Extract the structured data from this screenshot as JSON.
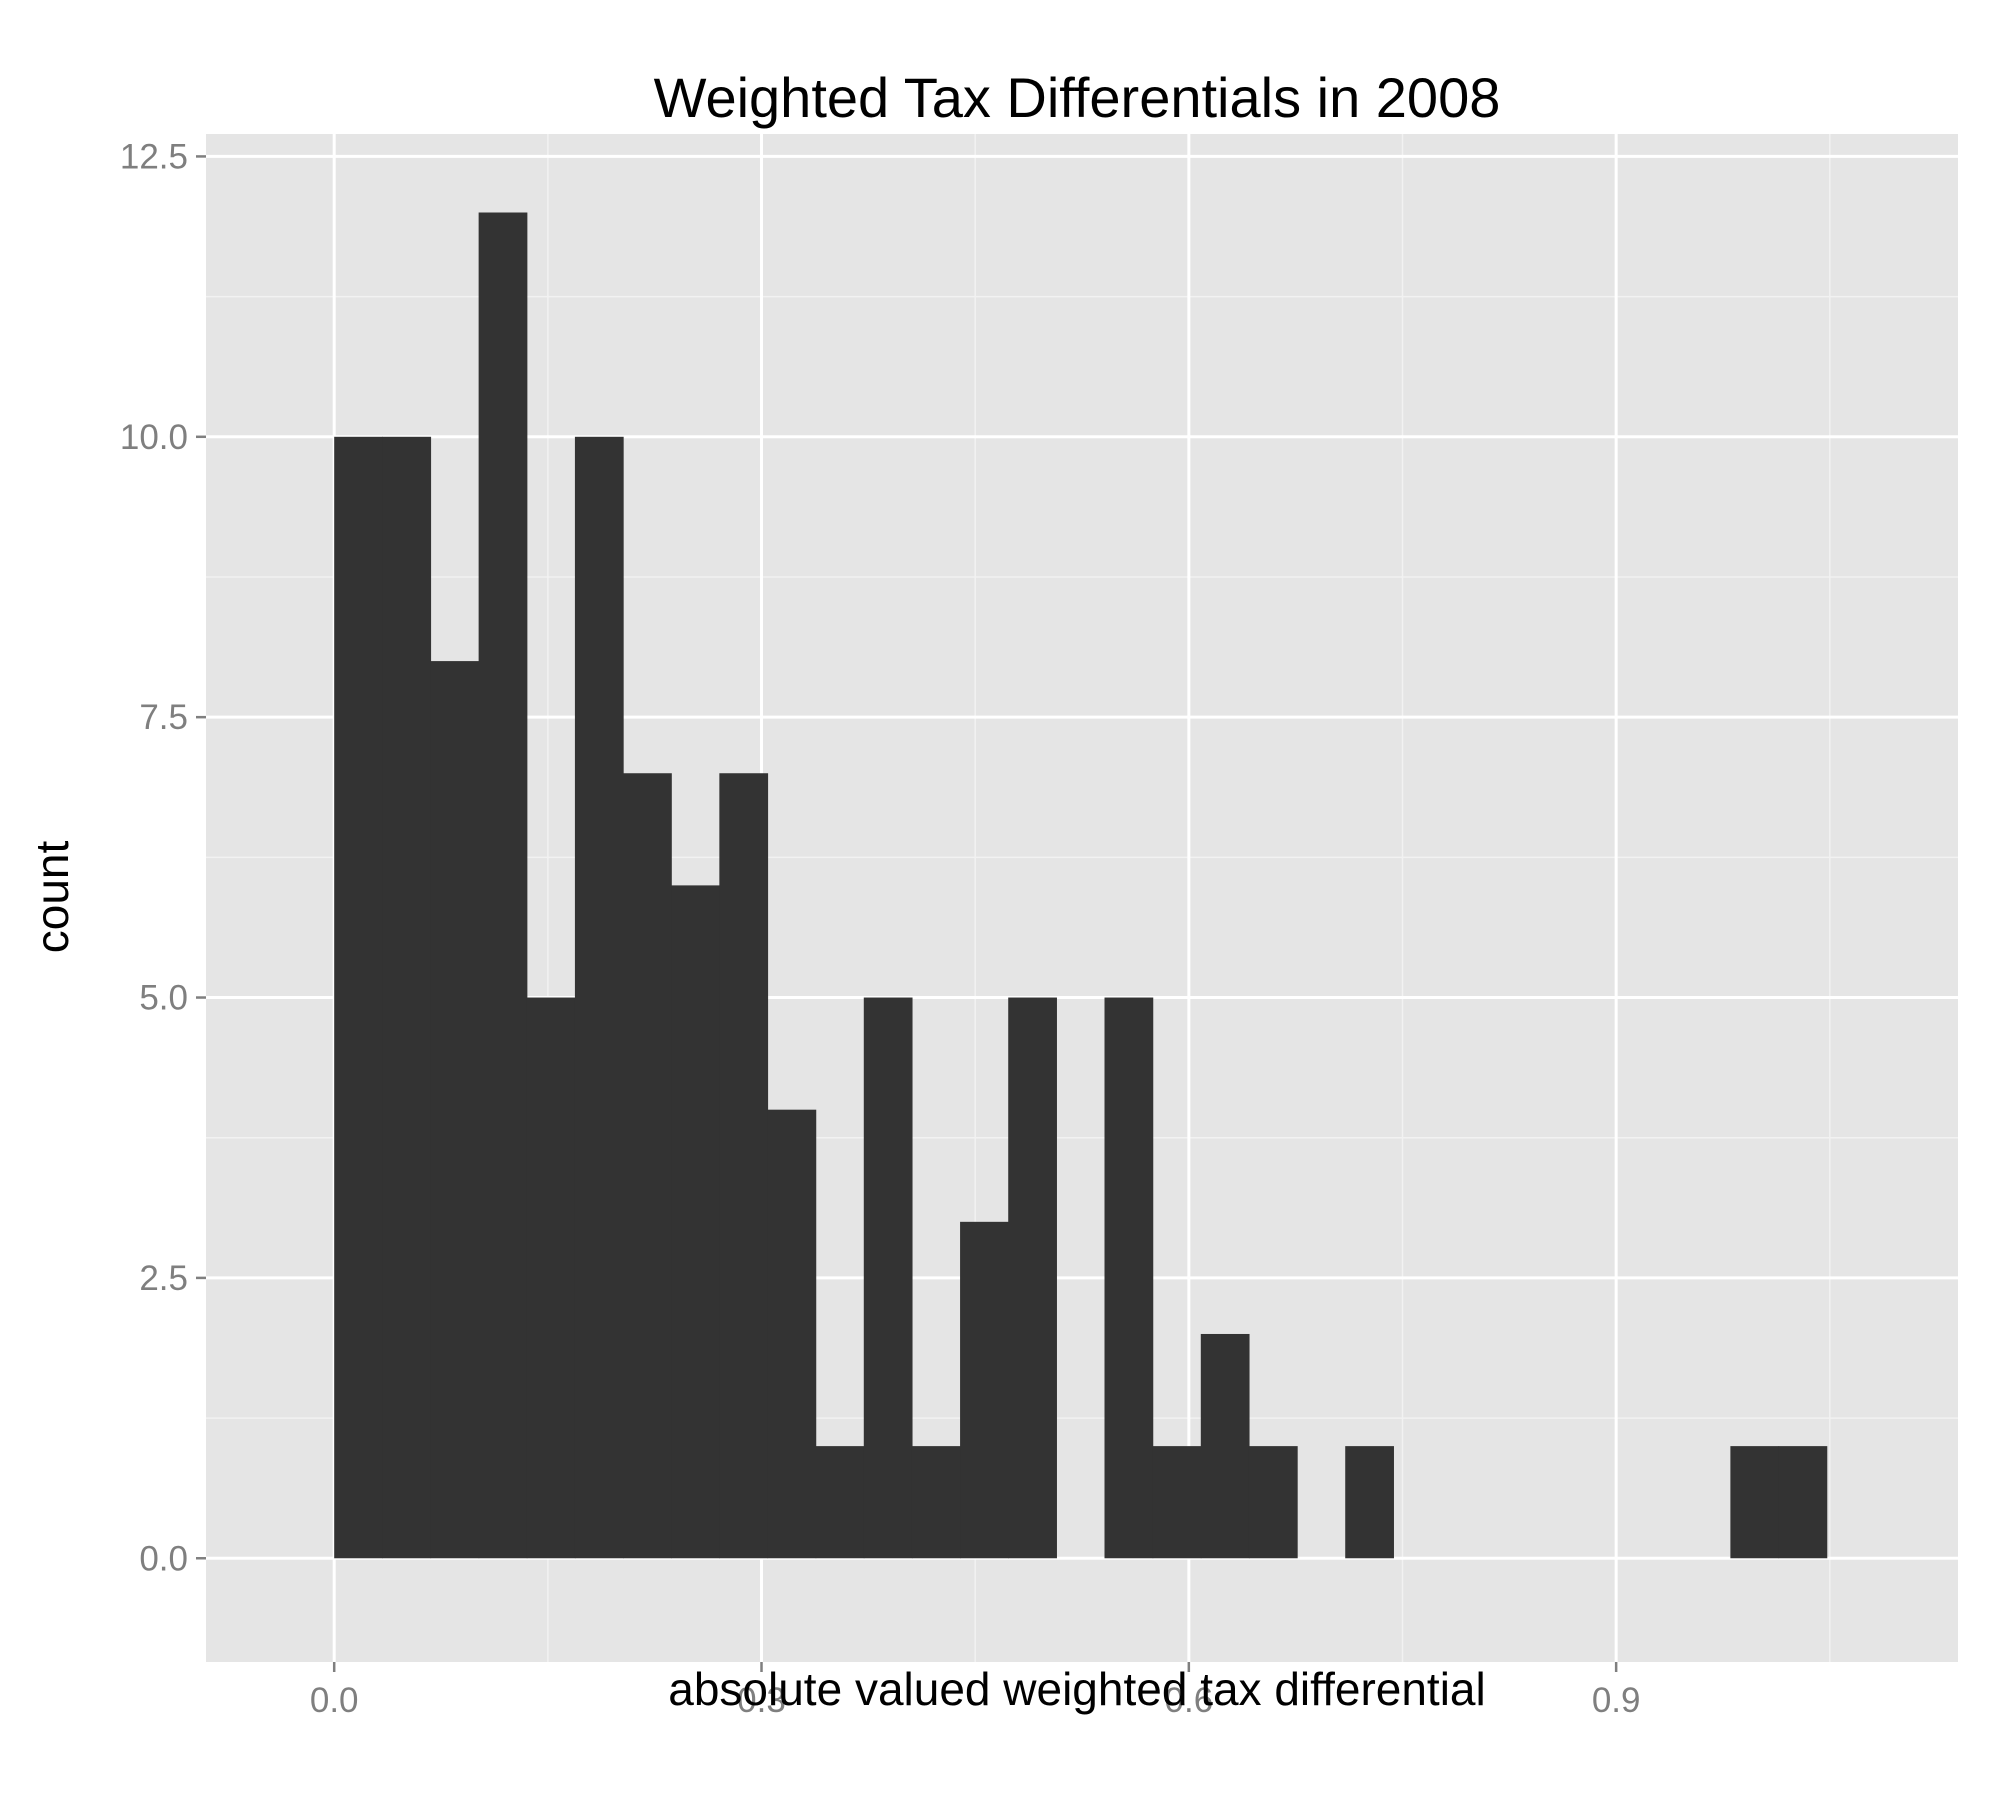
{
  "chart_data": {
    "type": "bar",
    "title": "Weighted Tax Differentials in 2008",
    "xlabel": "absolute valued weighted tax differential",
    "ylabel": "count",
    "xlim": [
      -0.09,
      1.14
    ],
    "ylim": [
      -0.925,
      12.7
    ],
    "x_ticks": [
      "0.0",
      "0.3",
      "0.6",
      "0.9"
    ],
    "x_tick_values": [
      0,
      0.3,
      0.6,
      0.9
    ],
    "y_ticks": [
      "0.0",
      "2.5",
      "5.0",
      "7.5",
      "10.0",
      "12.5"
    ],
    "y_tick_values": [
      0,
      2.5,
      5,
      7.5,
      10,
      12.5
    ],
    "bin_start": 0.0,
    "bin_width": 0.0338,
    "values": [
      10,
      10,
      8,
      12,
      5,
      10,
      7,
      6,
      7,
      4,
      1,
      5,
      1,
      3,
      5,
      0,
      5,
      1,
      2,
      1,
      0,
      1,
      0,
      0,
      0,
      0,
      0,
      0,
      0,
      1,
      1
    ],
    "grid": true,
    "legend": "none"
  },
  "colors": {
    "panel": "#e5e5e5",
    "grid_major": "#ffffff",
    "grid_minor": "#f2f2f2",
    "bar": "#333333",
    "tick_label": "#7f7f7f"
  }
}
